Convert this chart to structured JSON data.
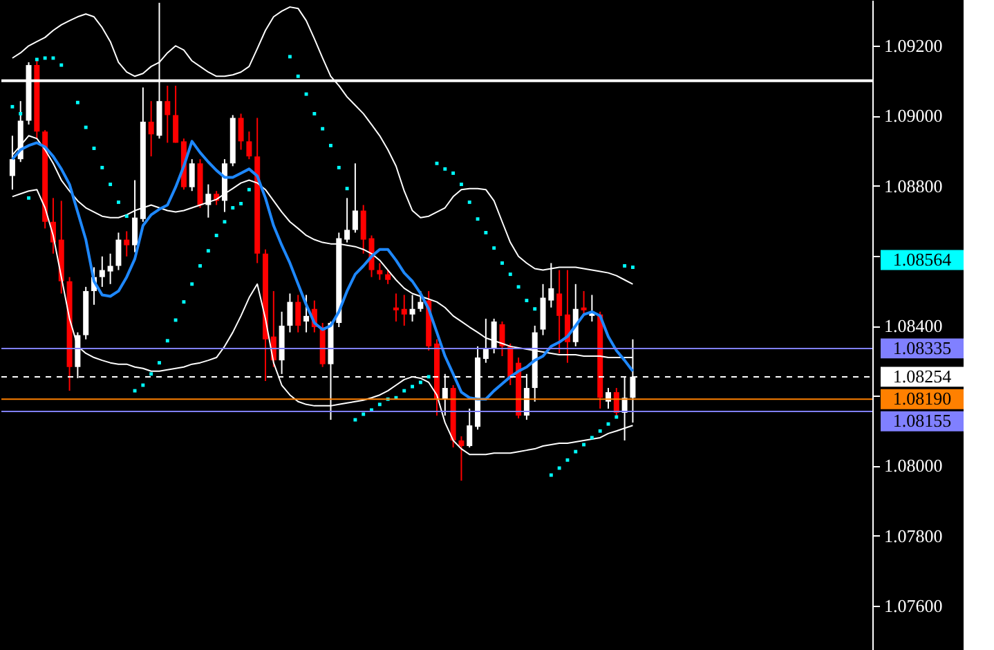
{
  "chart_data": {
    "type": "candlestick",
    "categories": [
      null,
      null,
      null,
      null,
      null,
      null,
      null,
      null,
      null,
      null,
      null,
      null,
      null,
      null,
      null,
      null,
      null,
      null,
      null,
      null,
      null,
      null,
      null,
      null,
      null,
      null,
      null,
      null,
      null,
      null,
      null,
      null,
      null,
      null,
      null,
      null,
      null,
      null,
      null,
      null,
      null,
      null,
      null,
      null,
      null,
      null,
      null,
      null,
      null,
      null,
      null,
      null,
      null,
      null,
      null,
      null,
      null,
      null,
      null,
      null,
      null,
      null,
      null,
      null,
      null,
      null,
      null,
      null,
      null,
      null,
      null,
      null,
      null,
      null,
      null,
      null,
      null,
      null,
      null,
      null,
      null,
      null,
      null,
      null,
      null,
      null,
      null,
      null,
      null,
      null,
      null,
      null,
      null,
      null,
      null,
      null,
      null,
      null,
      null,
      null,
      null,
      null,
      null,
      null,
      null
    ],
    "ohlc": [
      [
        1.08828,
        1.08943,
        1.08789,
        1.08876
      ],
      [
        1.08876,
        1.09042,
        1.08868,
        1.08986
      ],
      [
        1.08986,
        1.09153,
        1.08975,
        1.09145
      ],
      [
        1.09145,
        1.09165,
        1.08935,
        1.08955
      ],
      [
        1.08955,
        1.08959,
        1.08678,
        1.08697
      ],
      [
        1.08697,
        1.08765,
        1.08606,
        1.08638
      ],
      [
        1.08646,
        1.08757,
        1.08492,
        1.08527
      ],
      [
        1.08527,
        1.08539,
        1.08214,
        1.08282
      ],
      [
        1.08282,
        1.08381,
        1.0825,
        1.08373
      ],
      [
        1.08373,
        1.08511,
        1.08361,
        1.08499
      ],
      [
        1.08499,
        1.08567,
        1.0846,
        1.08539
      ],
      [
        1.08539,
        1.08598,
        1.08511,
        1.08559
      ],
      [
        1.08555,
        1.08606,
        1.08519,
        1.08571
      ],
      [
        1.08571,
        1.08666,
        1.08559,
        1.08646
      ],
      [
        1.08646,
        1.0867,
        1.08598,
        1.0863
      ],
      [
        1.0863,
        1.08816,
        1.0861,
        1.08709
      ],
      [
        1.08705,
        1.09081,
        1.08697,
        1.08983
      ],
      [
        1.08983,
        1.09042,
        1.08884,
        1.08947
      ],
      [
        1.08943,
        1.09323,
        1.08935,
        1.09042
      ],
      [
        1.09042,
        1.09086,
        1.08923,
        1.09002
      ],
      [
        1.09002,
        1.09086,
        1.08923,
        1.08923
      ],
      [
        1.08927,
        1.08935,
        1.08789,
        1.08796
      ],
      [
        1.08796,
        1.08876,
        1.08785,
        1.08864
      ],
      [
        1.08864,
        1.08876,
        1.08737,
        1.08745
      ],
      [
        1.08745,
        1.08804,
        1.08709,
        1.08777
      ],
      [
        1.08777,
        1.08785,
        1.08745,
        1.08757
      ],
      [
        1.08757,
        1.08876,
        1.08725,
        1.08864
      ],
      [
        1.08864,
        1.09002,
        1.08856,
        1.08994
      ],
      [
        1.08994,
        1.09006,
        1.08903,
        1.08927
      ],
      [
        1.08927,
        1.08955,
        1.08876,
        1.08884
      ],
      [
        1.08884,
        1.08994,
        1.08579,
        1.08606
      ],
      [
        1.08606,
        1.08618,
        1.08242,
        1.08361
      ],
      [
        1.08369,
        1.08499,
        1.08282,
        1.08301
      ],
      [
        1.08301,
        1.0844,
        1.08262,
        1.084
      ],
      [
        1.084,
        1.08492,
        1.08381,
        1.08468
      ],
      [
        1.08468,
        1.08488,
        1.08381,
        1.084
      ],
      [
        1.08412,
        1.08488,
        1.08381,
        1.08428
      ],
      [
        1.08448,
        1.08472,
        1.08381,
        1.08396
      ],
      [
        1.08396,
        1.08408,
        1.08282,
        1.0829
      ],
      [
        1.0829,
        1.08412,
        1.08131,
        1.08408
      ],
      [
        1.08408,
        1.08666,
        1.08396,
        1.0865
      ],
      [
        1.08646,
        1.08765,
        1.08638,
        1.08674
      ],
      [
        1.08674,
        1.08864,
        1.08666,
        1.08729
      ],
      [
        1.08729,
        1.08745,
        1.08606,
        1.08646
      ],
      [
        1.0865,
        1.08658,
        1.08539,
        1.08559
      ],
      [
        1.08559,
        1.08579,
        1.08531,
        1.08547
      ],
      [
        1.08547,
        1.08559,
        1.08519,
        1.08531
      ],
      [
        1.08452,
        1.08492,
        1.08412,
        1.08444
      ],
      [
        1.08448,
        1.08488,
        1.084,
        1.08432
      ],
      [
        1.08432,
        1.08488,
        1.08412,
        1.08448
      ],
      [
        1.08448,
        1.08499,
        1.0844,
        1.08468
      ],
      [
        1.08472,
        1.08499,
        1.08329,
        1.08341
      ],
      [
        1.08349,
        1.08361,
        1.08143,
        1.0819
      ],
      [
        1.0819,
        1.08262,
        1.08143,
        1.08222
      ],
      [
        1.08222,
        1.0823,
        1.08052,
        1.08072
      ],
      [
        1.08072,
        1.08084,
        1.07957,
        1.08056
      ],
      [
        1.08056,
        1.08163,
        1.08052,
        1.08115
      ],
      [
        1.08111,
        1.08341,
        1.08103,
        1.08309
      ],
      [
        1.08305,
        1.0842,
        1.08294,
        1.08333
      ],
      [
        1.08333,
        1.0842,
        1.08321,
        1.08412
      ],
      [
        1.08404,
        1.08412,
        1.08313,
        1.08341
      ],
      [
        1.08341,
        1.08349,
        1.0823,
        1.0825
      ],
      [
        1.08294,
        1.08309,
        1.08135,
        1.08143
      ],
      [
        1.08143,
        1.08262,
        1.08131,
        1.08222
      ],
      [
        1.08222,
        1.084,
        1.08183,
        1.08381
      ],
      [
        1.08389,
        1.08519,
        1.08373,
        1.0848
      ],
      [
        1.08472,
        1.08579,
        1.08452,
        1.08507
      ],
      [
        1.08492,
        1.08559,
        1.08321,
        1.08428
      ],
      [
        1.08432,
        1.08559,
        1.08294,
        1.08353
      ],
      [
        1.08353,
        1.08519,
        1.08341,
        1.08448
      ],
      [
        1.08452,
        1.08499,
        1.08428,
        1.08444
      ],
      [
        1.08428,
        1.08488,
        1.08412,
        1.0844
      ],
      [
        1.08432,
        1.0844,
        1.08163,
        1.08194
      ],
      [
        1.08183,
        1.08222,
        1.08163,
        1.0821
      ],
      [
        1.0821,
        1.08222,
        1.08143,
        1.08151
      ],
      [
        1.08151,
        1.08254,
        1.08072,
        1.08194
      ],
      [
        1.08194,
        1.08361,
        1.08123,
        1.08254
      ],
      null,
      null,
      null,
      null,
      null,
      null,
      null,
      null,
      null,
      null,
      null,
      null,
      null,
      null,
      null,
      null,
      null,
      null,
      null,
      null,
      null,
      null,
      null,
      null,
      null,
      null,
      null,
      null
    ],
    "colors": [
      "#ffffff",
      "#ffffff",
      "#ffffff",
      "#ff0000",
      "#ff0000",
      "#ff0000",
      "#ff0000",
      "#ff0000",
      "#ffffff",
      "#ffffff",
      "#ffffff",
      "#ffffff",
      "#ffffff",
      "#ffffff",
      "#ff0000",
      "#ffffff",
      "#ffffff",
      "#ff0000",
      "#ffffff",
      "#ff0000",
      "#ff0000",
      "#ff0000",
      "#ffffff",
      "#ff0000",
      "#ffffff",
      "#ff0000",
      "#ffffff",
      "#ffffff",
      "#ff0000",
      "#ff0000",
      "#ff0000",
      "#ff0000",
      "#ff0000",
      "#ffffff",
      "#ffffff",
      "#ff0000",
      "#ffffff",
      "#ff0000",
      "#ff0000",
      "#ffffff",
      "#ffffff",
      "#ffffff",
      "#ffffff",
      "#ff0000",
      "#ff0000",
      "#ff0000",
      "#ff0000",
      "#ff0000",
      "#ff0000",
      "#ffffff",
      "#ffffff",
      "#ff0000",
      "#ff0000",
      "#ffffff",
      "#ff0000",
      "#ff0000",
      "#ffffff",
      "#ffffff",
      "#ffffff",
      "#ffffff",
      "#ff0000",
      "#ff0000",
      "#ff0000",
      "#ffffff",
      "#ffffff",
      "#ffffff",
      "#ffffff",
      "#ff0000",
      "#ff0000",
      "#ffffff",
      "#ff0000",
      "#ffffff",
      "#ff0000",
      "#ffffff",
      "#ff0000",
      "#ffffff",
      "#ffffff",
      null,
      null,
      null,
      null,
      null,
      null,
      null,
      null,
      null,
      null,
      null,
      null,
      null,
      null,
      null,
      null,
      null,
      null,
      null,
      null,
      null,
      null,
      null,
      null,
      null,
      null,
      null,
      null
    ],
    "series": [
      {
        "type": "line",
        "color": "#ffffff",
        "values": [
          1.09165,
          1.0918,
          1.092,
          1.09212,
          1.09224,
          1.09244,
          1.0926,
          1.09272,
          1.09283,
          1.09291,
          1.09283,
          1.09252,
          1.09212,
          1.09153,
          1.09125,
          1.09113,
          1.09121,
          1.09141,
          1.09153,
          1.0918,
          1.092,
          1.09188,
          1.09157,
          1.09141,
          1.09125,
          1.09113,
          1.09113,
          1.09117,
          1.09125,
          1.09141,
          1.09192,
          1.09244,
          1.09283,
          1.09299,
          1.09311,
          1.09307,
          1.09272,
          1.0922,
          1.09165,
          1.09113,
          1.09086,
          1.09054,
          1.0903,
          1.09006,
          1.08975,
          1.08943,
          1.08903,
          1.08856,
          1.08785,
          1.08729,
          1.08709,
          1.08713,
          1.08725,
          1.08737,
          1.08769,
          1.08789,
          1.08792,
          1.08792,
          1.08789,
          1.08757,
          1.08697,
          1.08638,
          1.08598,
          1.08579,
          1.08563,
          1.08559,
          1.08563,
          1.08567,
          1.08567,
          1.08567,
          1.08563,
          1.08559,
          1.08555,
          1.08551,
          1.08543,
          1.08531,
          1.08519,
          null,
          null,
          null,
          null,
          null,
          null,
          null,
          null,
          null,
          null,
          null,
          null,
          null,
          null,
          null,
          null,
          null,
          null,
          null,
          null,
          null,
          null,
          null,
          null,
          null,
          null,
          null,
          null
        ]
      },
      {
        "type": "line",
        "color": "#ffffff",
        "values": [
          1.08888,
          1.08915,
          1.08943,
          1.08935,
          1.08903,
          1.08864,
          1.08816,
          1.08785,
          1.08757,
          1.08737,
          1.08725,
          1.08713,
          1.08709,
          1.08709,
          1.08717,
          1.08729,
          1.08737,
          1.08745,
          1.08737,
          1.08729,
          1.08725,
          1.08729,
          1.08737,
          1.08745,
          1.08753,
          1.08761,
          1.08777,
          1.08792,
          1.08808,
          1.08816,
          1.08808,
          1.08789,
          1.08757,
          1.08725,
          1.08697,
          1.08678,
          1.08658,
          1.08646,
          1.08638,
          1.08634,
          1.08634,
          1.0863,
          1.08626,
          1.08618,
          1.08606,
          1.08587,
          1.08559,
          1.08531,
          1.08507,
          1.08492,
          1.08484,
          1.08476,
          1.08468,
          1.08452,
          1.08428,
          1.08412,
          1.08396,
          1.08381,
          1.08365,
          1.08357,
          1.08349,
          1.08341,
          1.08337,
          1.08333,
          1.08329,
          1.08325,
          1.08321,
          1.08317,
          1.08317,
          1.08317,
          1.08313,
          1.08313,
          1.08313,
          1.08309,
          1.08309,
          1.08309,
          1.08309,
          null,
          null,
          null,
          null,
          null,
          null,
          null,
          null,
          null,
          null,
          null,
          null,
          null,
          null,
          null,
          null,
          null,
          null,
          null,
          null,
          null,
          null,
          null,
          null,
          null,
          null,
          null,
          null
        ]
      },
      {
        "type": "line",
        "color": "#ffffff",
        "values": [
          1.08769,
          1.08777,
          1.08785,
          1.08789,
          1.08737,
          1.08658,
          1.08539,
          1.0842,
          1.08341,
          1.08321,
          1.08309,
          1.08301,
          1.08294,
          1.0829,
          1.0829,
          1.08282,
          1.08278,
          1.0827,
          1.0827,
          1.08274,
          1.08278,
          1.08282,
          1.0829,
          1.08294,
          1.08301,
          1.08309,
          1.08341,
          1.08381,
          1.08428,
          1.0848,
          1.08519,
          1.0842,
          1.08294,
          1.0823,
          1.08202,
          1.08183,
          1.08175,
          1.08171,
          1.08171,
          1.08171,
          1.08175,
          1.08179,
          1.08183,
          1.08187,
          1.08194,
          1.08202,
          1.08214,
          1.0823,
          1.08246,
          1.08254,
          1.0825,
          1.08238,
          1.08202,
          1.08123,
          1.08072,
          1.08048,
          1.08032,
          1.08032,
          1.08032,
          1.08036,
          1.08036,
          1.08036,
          1.0804,
          1.08044,
          1.08048,
          1.08056,
          1.0806,
          1.08064,
          1.08064,
          1.08068,
          1.08072,
          1.08076,
          1.0808,
          1.08092,
          1.08099,
          1.08107,
          1.08115,
          null,
          null,
          null,
          null,
          null,
          null,
          null,
          null,
          null,
          null,
          null,
          null,
          null,
          null,
          null,
          null,
          null,
          null,
          null,
          null,
          null,
          null,
          null,
          null,
          null,
          null,
          null,
          null
        ]
      },
      {
        "type": "line",
        "color": "#1e88ff",
        "values": [
          1.08876,
          1.08903,
          1.08915,
          1.08923,
          1.08911,
          1.08884,
          1.08848,
          1.08804,
          1.08725,
          1.08646,
          1.08527,
          1.08488,
          1.08484,
          1.08499,
          1.08539,
          1.08591,
          1.08686,
          1.08717,
          1.08733,
          1.08745,
          1.08796,
          1.08856,
          1.08927,
          1.08895,
          1.08868,
          1.08844,
          1.08824,
          1.08824,
          1.08836,
          1.08848,
          1.08828,
          1.08765,
          1.08686,
          1.0863,
          1.08579,
          1.08519,
          1.0846,
          1.08408,
          1.08389,
          1.084,
          1.0844,
          1.08499,
          1.08547,
          1.08571,
          1.08598,
          1.08618,
          1.08618,
          1.08587,
          1.08551,
          1.08527,
          1.08492,
          1.08448,
          1.08381,
          1.08313,
          1.08262,
          1.0821,
          1.08194,
          1.0819,
          1.0819,
          1.08214,
          1.08234,
          1.08254,
          1.0827,
          1.08282,
          1.08301,
          1.08313,
          1.08341,
          1.08353,
          1.08369,
          1.084,
          1.08432,
          1.0844,
          1.08428,
          1.08369,
          1.08329,
          1.08301,
          1.0827,
          null,
          null,
          null,
          null,
          null,
          null,
          null,
          null,
          null,
          null,
          null,
          null,
          null,
          null,
          null,
          null,
          null,
          null,
          null,
          null,
          null,
          null,
          null,
          null,
          null,
          null,
          null,
          null
        ]
      },
      {
        "type": "scatter",
        "marker": "square",
        "color": "#00ffff",
        "values": [
          1.09026,
          1.09006,
          1.08765,
          1.09161,
          1.09165,
          1.09165,
          1.09145,
          null,
          1.09038,
          1.08967,
          1.08907,
          1.08852,
          1.08804,
          1.08753,
          1.08713,
          1.08214,
          1.0823,
          1.08262,
          1.08294,
          1.08357,
          1.08416,
          1.08468,
          1.08519,
          1.08571,
          1.08614,
          1.08658,
          1.08697,
          1.08737,
          1.08749,
          1.08789,
          null,
          null,
          null,
          null,
          1.09169,
          1.09113,
          1.09062,
          1.09006,
          1.08963,
          1.08915,
          1.08852,
          1.08792,
          1.08131,
          1.08147,
          1.08159,
          1.08175,
          1.0819,
          1.08194,
          1.08214,
          1.08226,
          1.08238,
          1.08254,
          1.08864,
          1.08848,
          1.08836,
          1.08804,
          1.08753,
          1.08705,
          1.08666,
          1.08622,
          1.08579,
          1.08547,
          1.08511,
          1.08472,
          1.08448,
          null,
          1.07973,
          1.07993,
          1.08016,
          1.0804,
          1.0806,
          1.0808,
          1.08099,
          1.08119,
          1.08139,
          1.08571,
          1.08567,
          null,
          null,
          null,
          null,
          null,
          null,
          null,
          null,
          null,
          null,
          null,
          null,
          null,
          null,
          null,
          null,
          null,
          null,
          null,
          null,
          null,
          null,
          null,
          null,
          null,
          null,
          null,
          null
        ]
      }
    ],
    "ylim": [
      1.07473,
      1.09331
    ],
    "yticks": [
      {
        "value": 1.092,
        "label": "1.09200"
      },
      {
        "value": 1.09,
        "label": "1.09000"
      },
      {
        "value": 1.088,
        "label": "1.08800"
      },
      {
        "value": 1.086,
        "label": null
      },
      {
        "value": 1.084,
        "label": "1.08400"
      },
      {
        "value": 1.082,
        "label": null
      },
      {
        "value": 1.08,
        "label": "1.08000"
      },
      {
        "value": 1.078,
        "label": "1.07800"
      },
      {
        "value": 1.076,
        "label": "1.07600"
      }
    ],
    "tick_labels": "y",
    "ref_lines": [
      {
        "axis": "y",
        "value": 1.091,
        "color": "#ffffff"
      },
      {
        "axis": "y",
        "value": 1.08335,
        "label": "1.08335",
        "color": "#8080ff"
      },
      {
        "axis": "y",
        "value": 1.08254,
        "label": "1.08254",
        "color": "#ffffff",
        "line_style": "dashed"
      },
      {
        "axis": "y",
        "value": 1.0819,
        "label": "1.08190",
        "color": "#ff8000"
      },
      {
        "axis": "y",
        "value": 1.08155,
        "label": "1.08155",
        "color": "#8080ff"
      }
    ],
    "annotations": [
      "1.08564"
    ]
  }
}
